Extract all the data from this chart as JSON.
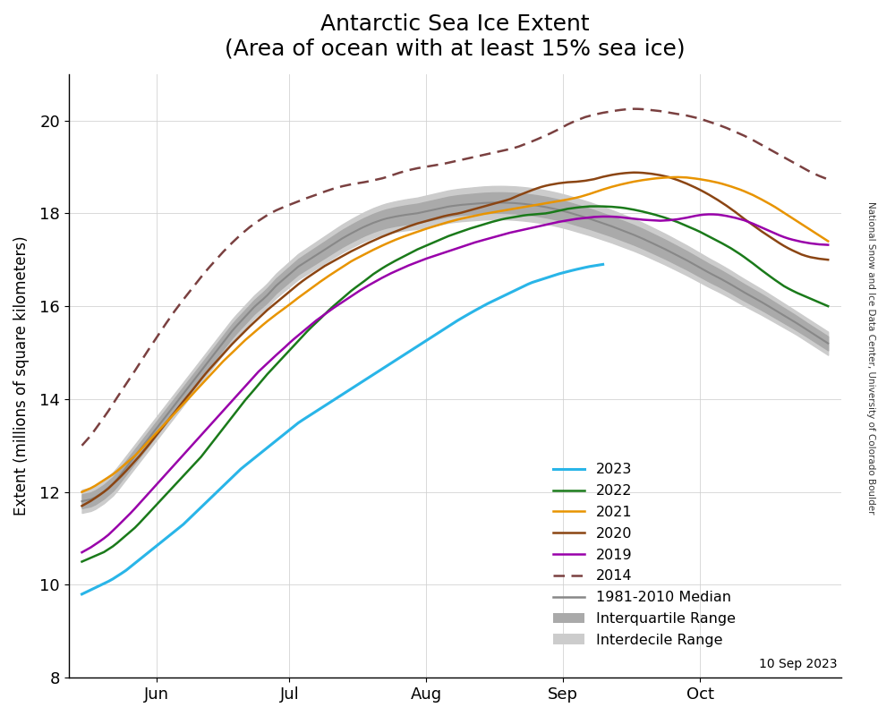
{
  "title": "Antarctic Sea Ice Extent\n(Area of ocean with at least 15% sea ice)",
  "ylabel": "Extent (millions of square kilometers)",
  "date_label": "10 Sep 2023",
  "credit": "National Snow and Ice Data Center, University of Colorado Boulder",
  "ylim": [
    8,
    21
  ],
  "yticks": [
    8,
    10,
    12,
    14,
    16,
    18,
    20
  ],
  "colors": {
    "2023": "#29b5e8",
    "2022": "#1a7a1a",
    "2021": "#e89400",
    "2020": "#8b4513",
    "2019": "#9900aa",
    "2014": "#7a4040",
    "median": "#888888",
    "interquartile": "#aaaaaa",
    "interdecile": "#cccccc"
  },
  "x_tick_labels": [
    "Jun",
    "Jul",
    "Aug",
    "Sep",
    "Oct"
  ],
  "background_color": "#ffffff"
}
